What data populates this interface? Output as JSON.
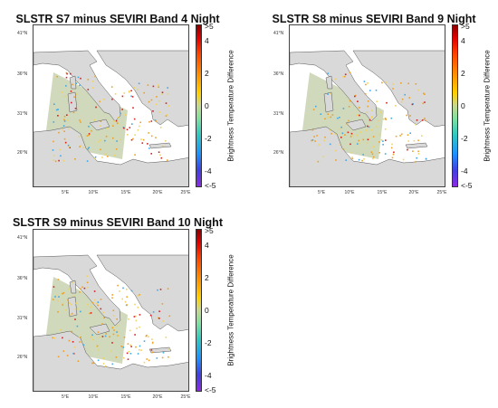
{
  "panels": [
    {
      "title": "SLSTR S7 minus SEVIRI Band 4 Night"
    },
    {
      "title": "SLSTR S8 minus SEVIRI Band 9 Night"
    },
    {
      "title": "SLSTR S9 minus SEVIRI Band 10 Night"
    }
  ],
  "lat_labels": [
    "41°N",
    "36°N",
    "31°N",
    "26°N"
  ],
  "lon_labels": [
    "5°E",
    "10°E",
    "15°E",
    "20°E",
    "25°E"
  ],
  "colorbar": {
    "label": "Brightness Temperature Difference",
    "ticks": [
      ">5",
      "4",
      "2",
      "0",
      "-2",
      "-4",
      "<-5"
    ],
    "range": [
      -5,
      5
    ]
  },
  "colors": {
    "land": "#d9d9d9",
    "swath": "#c8d2b0",
    "coast": "#555555",
    "hot": "#d81e1e",
    "warm": "#f0a020",
    "mild": "#f2d25a",
    "cool": "#40a8e8"
  }
}
